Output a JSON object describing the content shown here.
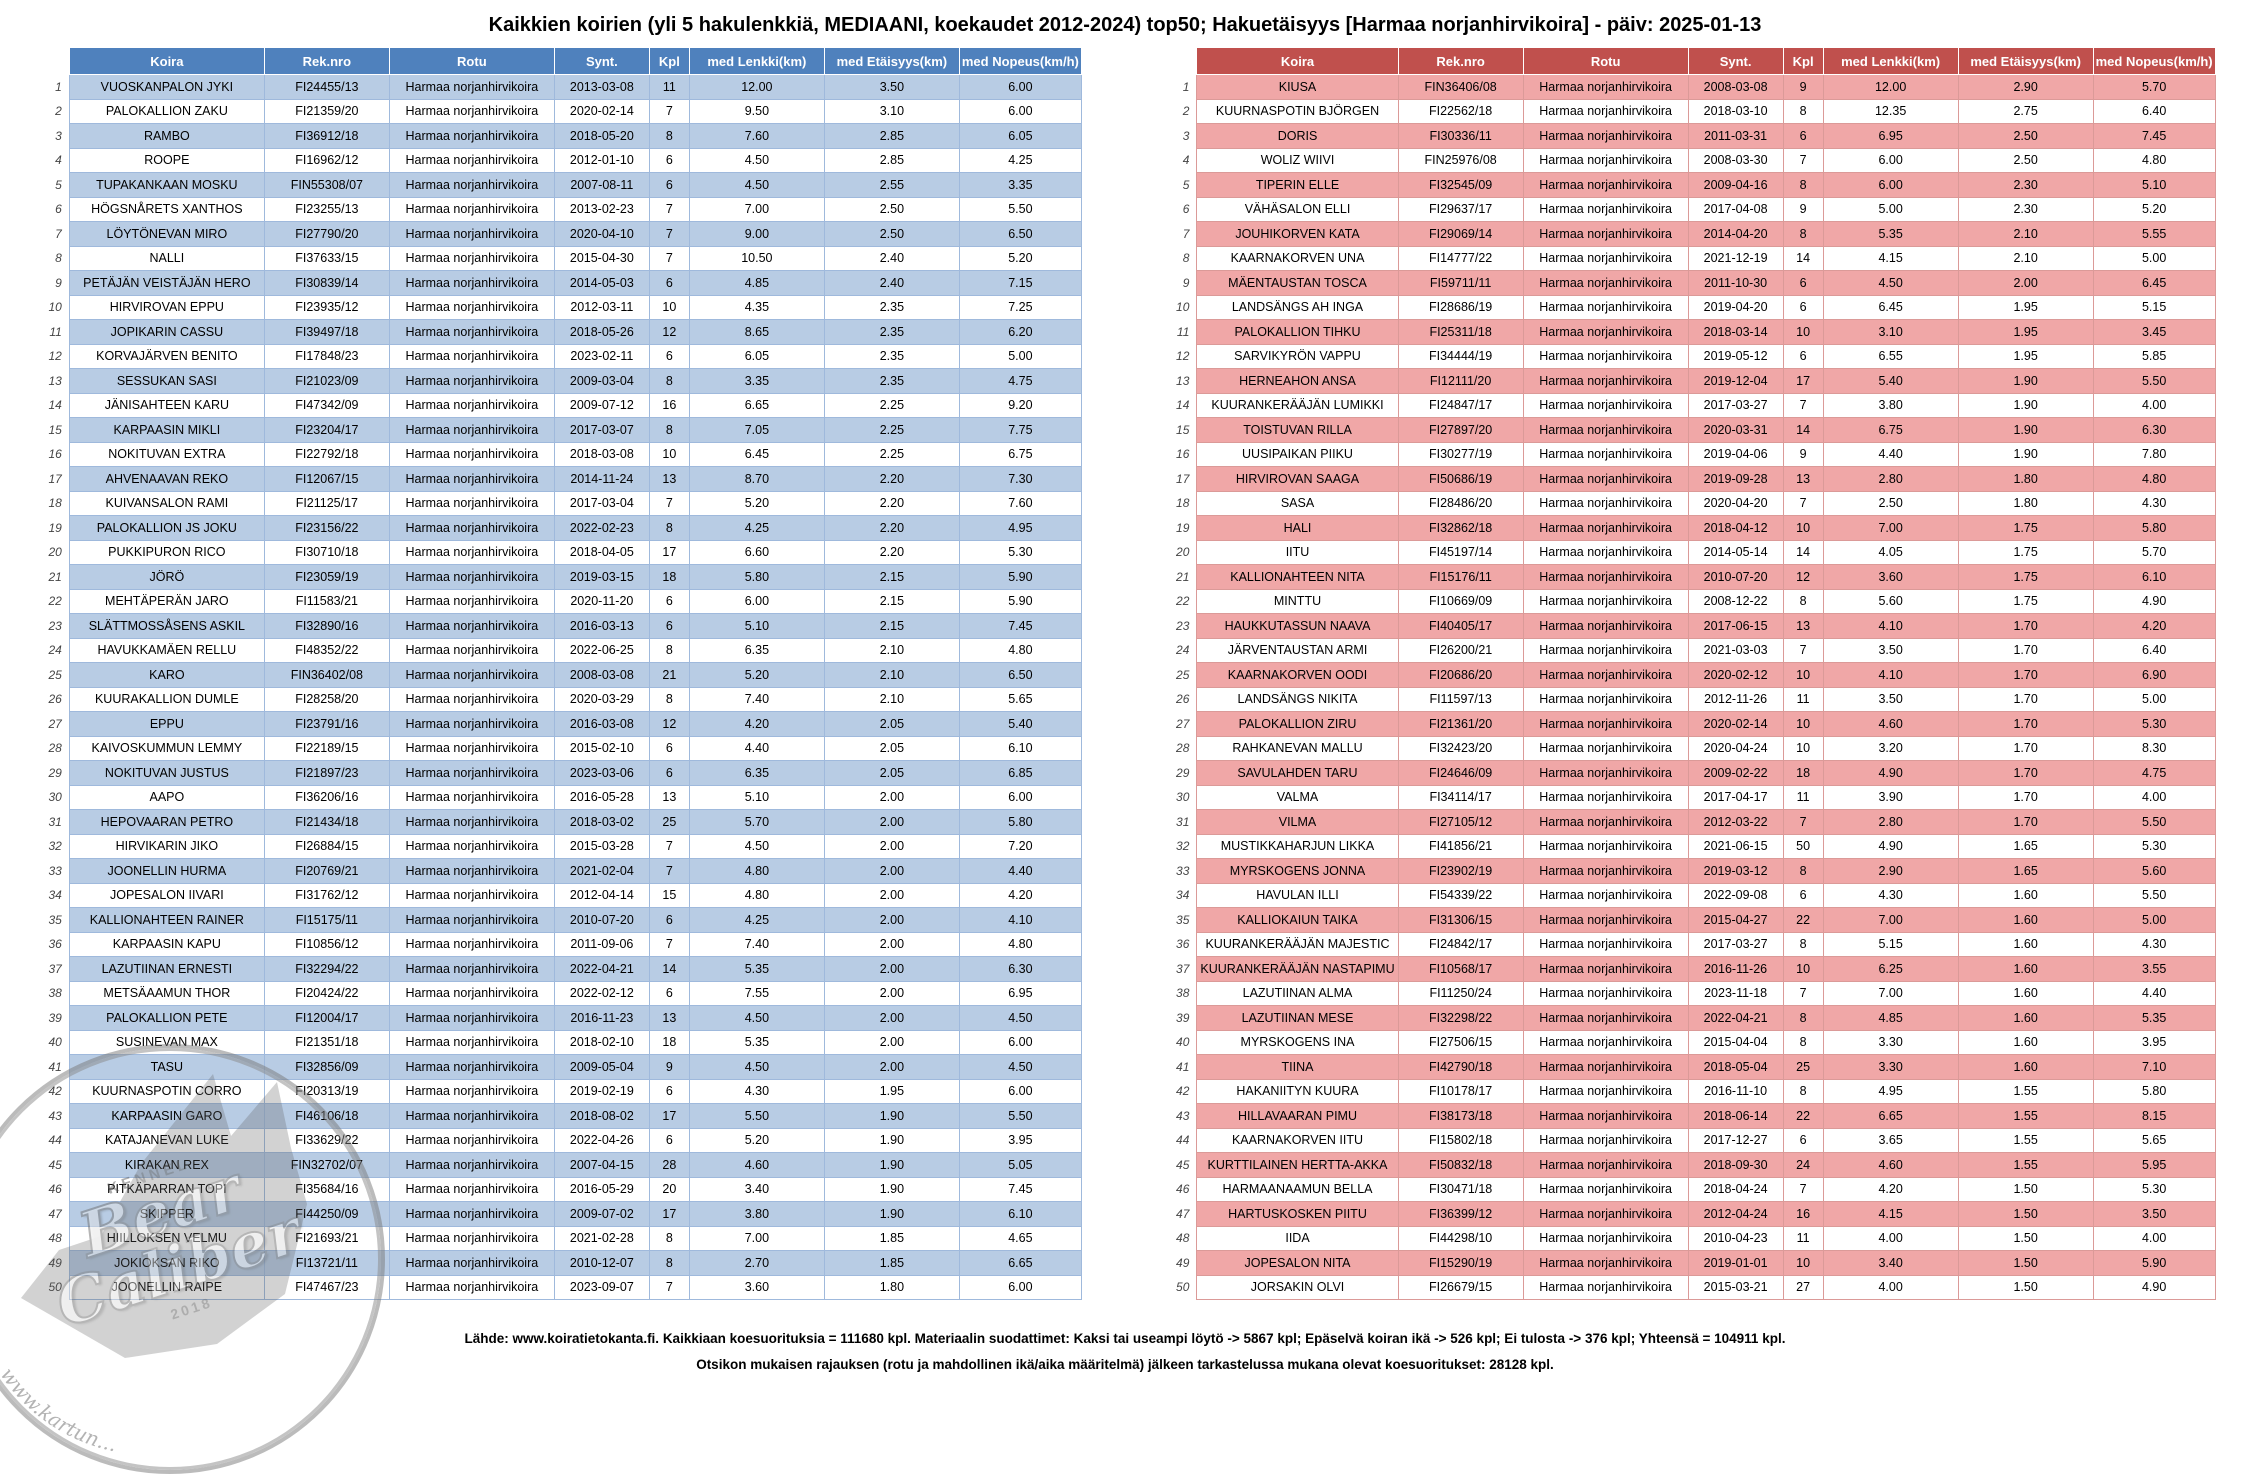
{
  "title": "Kaikkien koirien (yli 5 hakulenkkiä, MEDIAANI, koekaudet 2012-2024) top50; Hakuetäisyys [Harmaa norjanhirvikoira] - päiv: 2025-01-13",
  "columns": [
    "Koira",
    "Rek.nro",
    "Rotu",
    "Synt.",
    "Kpl",
    "med Lenkki(km)",
    "med Etäisyys(km)",
    "med Nopeus(km/h)"
  ],
  "breed": "Harmaa norjanhirvikoira",
  "theme": {
    "left_header_bg": "#4F81BD",
    "left_stripe_bg": "#B8CCE4",
    "right_header_bg": "#C0504D",
    "right_stripe_bg": "#F0A7A7"
  },
  "left_table": {
    "rows": [
      [
        1,
        "VUOSKANPALON JYKI",
        "FI24455/13",
        "2013-03-08",
        "11",
        "12.00",
        "3.50",
        "6.00"
      ],
      [
        2,
        "PALOKALLION ZAKU",
        "FI21359/20",
        "2020-02-14",
        "7",
        "9.50",
        "3.10",
        "6.00"
      ],
      [
        3,
        "RAMBO",
        "FI36912/18",
        "2018-05-20",
        "8",
        "7.60",
        "2.85",
        "6.05"
      ],
      [
        4,
        "ROOPE",
        "FI16962/12",
        "2012-01-10",
        "6",
        "4.50",
        "2.85",
        "4.25"
      ],
      [
        5,
        "TUPAKANKAAN MOSKU",
        "FIN55308/07",
        "2007-08-11",
        "6",
        "4.50",
        "2.55",
        "3.35"
      ],
      [
        6,
        "HÖGSNÅRETS XANTHOS",
        "FI23255/13",
        "2013-02-23",
        "7",
        "7.00",
        "2.50",
        "5.50"
      ],
      [
        7,
        "LÖYTÖNEVAN MIRO",
        "FI27790/20",
        "2020-04-10",
        "7",
        "9.00",
        "2.50",
        "6.50"
      ],
      [
        8,
        "NALLI",
        "FI37633/15",
        "2015-04-30",
        "7",
        "10.50",
        "2.40",
        "5.20"
      ],
      [
        9,
        "PETÄJÄN VEISTÄJÄN HERO",
        "FI30839/14",
        "2014-05-03",
        "6",
        "4.85",
        "2.40",
        "7.15"
      ],
      [
        10,
        "HIRVIROVAN EPPU",
        "FI23935/12",
        "2012-03-11",
        "10",
        "4.35",
        "2.35",
        "7.25"
      ],
      [
        11,
        "JOPIKARIN CASSU",
        "FI39497/18",
        "2018-05-26",
        "12",
        "8.65",
        "2.35",
        "6.20"
      ],
      [
        12,
        "KORVAJÄRVEN BENITO",
        "FI17848/23",
        "2023-02-11",
        "6",
        "6.05",
        "2.35",
        "5.00"
      ],
      [
        13,
        "SESSUKAN SASI",
        "FI21023/09",
        "2009-03-04",
        "8",
        "3.35",
        "2.35",
        "4.75"
      ],
      [
        14,
        "JÄNISAHTEEN KARU",
        "FI47342/09",
        "2009-07-12",
        "16",
        "6.65",
        "2.25",
        "9.20"
      ],
      [
        15,
        "KARPAASIN MIKLI",
        "FI23204/17",
        "2017-03-07",
        "8",
        "7.05",
        "2.25",
        "7.75"
      ],
      [
        16,
        "NOKITUVAN EXTRA",
        "FI22792/18",
        "2018-03-08",
        "10",
        "6.45",
        "2.25",
        "6.75"
      ],
      [
        17,
        "AHVENAAVAN REKO",
        "FI12067/15",
        "2014-11-24",
        "13",
        "8.70",
        "2.20",
        "7.30"
      ],
      [
        18,
        "KUIVANSALON RAMI",
        "FI21125/17",
        "2017-03-04",
        "7",
        "5.20",
        "2.20",
        "7.60"
      ],
      [
        19,
        "PALOKALLION JS JOKU",
        "FI23156/22",
        "2022-02-23",
        "8",
        "4.25",
        "2.20",
        "4.95"
      ],
      [
        20,
        "PUKKIPURON RICO",
        "FI30710/18",
        "2018-04-05",
        "17",
        "6.60",
        "2.20",
        "5.30"
      ],
      [
        21,
        "JÖRÖ",
        "FI23059/19",
        "2019-03-15",
        "18",
        "5.80",
        "2.15",
        "5.90"
      ],
      [
        22,
        "MEHTÄPERÄN JARO",
        "FI11583/21",
        "2020-11-20",
        "6",
        "6.00",
        "2.15",
        "5.90"
      ],
      [
        23,
        "SLÄTTMOSSÅSENS ASKIL",
        "FI32890/16",
        "2016-03-13",
        "6",
        "5.10",
        "2.15",
        "7.45"
      ],
      [
        24,
        "HAVUKKAMÄEN RELLU",
        "FI48352/22",
        "2022-06-25",
        "8",
        "6.35",
        "2.10",
        "4.80"
      ],
      [
        25,
        "KARO",
        "FIN36402/08",
        "2008-03-08",
        "21",
        "5.20",
        "2.10",
        "6.50"
      ],
      [
        26,
        "KUURAKALLION DUMLE",
        "FI28258/20",
        "2020-03-29",
        "8",
        "7.40",
        "2.10",
        "5.65"
      ],
      [
        27,
        "EPPU",
        "FI23791/16",
        "2016-03-08",
        "12",
        "4.20",
        "2.05",
        "5.40"
      ],
      [
        28,
        "KAIVOSKUMMUN LEMMY",
        "FI22189/15",
        "2015-02-10",
        "6",
        "4.40",
        "2.05",
        "6.10"
      ],
      [
        29,
        "NOKITUVAN JUSTUS",
        "FI21897/23",
        "2023-03-06",
        "6",
        "6.35",
        "2.05",
        "6.85"
      ],
      [
        30,
        "AAPO",
        "FI36206/16",
        "2016-05-28",
        "13",
        "5.10",
        "2.00",
        "6.00"
      ],
      [
        31,
        "HEPOVAARAN PETRO",
        "FI21434/18",
        "2018-03-02",
        "25",
        "5.70",
        "2.00",
        "5.80"
      ],
      [
        32,
        "HIRVIKARIN JIKO",
        "FI26884/15",
        "2015-03-28",
        "7",
        "4.50",
        "2.00",
        "7.20"
      ],
      [
        33,
        "JOONELLIN HURMA",
        "FI20769/21",
        "2021-02-04",
        "7",
        "4.80",
        "2.00",
        "4.40"
      ],
      [
        34,
        "JOPESALON IIVARI",
        "FI31762/12",
        "2012-04-14",
        "15",
        "4.80",
        "2.00",
        "4.20"
      ],
      [
        35,
        "KALLIONAHTEEN RAINER",
        "FI15175/11",
        "2010-07-20",
        "6",
        "4.25",
        "2.00",
        "4.10"
      ],
      [
        36,
        "KARPAASIN KAPU",
        "FI10856/12",
        "2011-09-06",
        "7",
        "7.40",
        "2.00",
        "4.80"
      ],
      [
        37,
        "LAZUTIINAN ERNESTI",
        "FI32294/22",
        "2022-04-21",
        "14",
        "5.35",
        "2.00",
        "6.30"
      ],
      [
        38,
        "METSÄAAMUN THOR",
        "FI20424/22",
        "2022-02-12",
        "6",
        "7.55",
        "2.00",
        "6.95"
      ],
      [
        39,
        "PALOKALLION PETE",
        "FI12004/17",
        "2016-11-23",
        "13",
        "4.50",
        "2.00",
        "4.50"
      ],
      [
        40,
        "SUSINEVAN MAX",
        "FI21351/18",
        "2018-02-10",
        "18",
        "5.35",
        "2.00",
        "6.00"
      ],
      [
        41,
        "TASU",
        "FI32856/09",
        "2009-05-04",
        "9",
        "4.50",
        "2.00",
        "4.50"
      ],
      [
        42,
        "KUURNASPOTIN CORRO",
        "FI20313/19",
        "2019-02-19",
        "6",
        "4.30",
        "1.95",
        "6.00"
      ],
      [
        43,
        "KARPAASIN GARO",
        "FI46106/18",
        "2018-08-02",
        "17",
        "5.50",
        "1.90",
        "5.50"
      ],
      [
        44,
        "KATAJANEVAN LUKE",
        "FI33629/22",
        "2022-04-26",
        "6",
        "5.20",
        "1.90",
        "3.95"
      ],
      [
        45,
        "KIRAKAN REX",
        "FIN32702/07",
        "2007-04-15",
        "28",
        "4.60",
        "1.90",
        "5.05"
      ],
      [
        46,
        "PITKÄPARRAN TOPI",
        "FI35684/16",
        "2016-05-29",
        "20",
        "3.40",
        "1.90",
        "7.45"
      ],
      [
        47,
        "SKIPPER",
        "FI44250/09",
        "2009-07-02",
        "17",
        "3.80",
        "1.90",
        "6.10"
      ],
      [
        48,
        "HIILLOKSEN VELMU",
        "FI21693/21",
        "2021-02-28",
        "8",
        "7.00",
        "1.85",
        "4.65"
      ],
      [
        49,
        "JOKIOKSAN RIKO",
        "FI13721/11",
        "2010-12-07",
        "8",
        "2.70",
        "1.85",
        "6.65"
      ],
      [
        50,
        "JOONELLIN RAIPE",
        "FI47467/23",
        "2023-09-07",
        "7",
        "3.60",
        "1.80",
        "6.00"
      ]
    ]
  },
  "right_table": {
    "rows": [
      [
        1,
        "KIUSA",
        "FIN36406/08",
        "2008-03-08",
        "9",
        "12.00",
        "2.90",
        "5.70"
      ],
      [
        2,
        "KUURNASPOTIN BJÖRGEN",
        "FI22562/18",
        "2018-03-10",
        "8",
        "12.35",
        "2.75",
        "6.40"
      ],
      [
        3,
        "DORIS",
        "FI30336/11",
        "2011-03-31",
        "6",
        "6.95",
        "2.50",
        "7.45"
      ],
      [
        4,
        "WOLIZ WIIVI",
        "FIN25976/08",
        "2008-03-30",
        "7",
        "6.00",
        "2.50",
        "4.80"
      ],
      [
        5,
        "TIPERIN ELLE",
        "FI32545/09",
        "2009-04-16",
        "8",
        "6.00",
        "2.30",
        "5.10"
      ],
      [
        6,
        "VÄHÄSALON ELLI",
        "FI29637/17",
        "2017-04-08",
        "9",
        "5.00",
        "2.30",
        "5.20"
      ],
      [
        7,
        "JOUHIKORVEN KATA",
        "FI29069/14",
        "2014-04-20",
        "8",
        "5.35",
        "2.10",
        "5.55"
      ],
      [
        8,
        "KAARNAKORVEN UNA",
        "FI14777/22",
        "2021-12-19",
        "14",
        "4.15",
        "2.10",
        "5.00"
      ],
      [
        9,
        "MÄENTAUSTAN TOSCA",
        "FI59711/11",
        "2011-10-30",
        "6",
        "4.50",
        "2.00",
        "6.45"
      ],
      [
        10,
        "LANDSÄNGS AH INGA",
        "FI28686/19",
        "2019-04-20",
        "6",
        "6.45",
        "1.95",
        "5.15"
      ],
      [
        11,
        "PALOKALLION TIHKU",
        "FI25311/18",
        "2018-03-14",
        "10",
        "3.10",
        "1.95",
        "3.45"
      ],
      [
        12,
        "SARVIKYRÖN VAPPU",
        "FI34444/19",
        "2019-05-12",
        "6",
        "6.55",
        "1.95",
        "5.85"
      ],
      [
        13,
        "HERNEAHON ANSA",
        "FI12111/20",
        "2019-12-04",
        "17",
        "5.40",
        "1.90",
        "5.50"
      ],
      [
        14,
        "KUURANKERÄÄJÄN LUMIKKI",
        "FI24847/17",
        "2017-03-27",
        "7",
        "3.80",
        "1.90",
        "4.00"
      ],
      [
        15,
        "TOISTUVAN RILLA",
        "FI27897/20",
        "2020-03-31",
        "14",
        "6.75",
        "1.90",
        "6.30"
      ],
      [
        16,
        "UUSIPAIKAN PIIKU",
        "FI30277/19",
        "2019-04-06",
        "9",
        "4.40",
        "1.90",
        "7.80"
      ],
      [
        17,
        "HIRVIROVAN SAAGA",
        "FI50686/19",
        "2019-09-28",
        "13",
        "2.80",
        "1.80",
        "4.80"
      ],
      [
        18,
        "SASA",
        "FI28486/20",
        "2020-04-20",
        "7",
        "2.50",
        "1.80",
        "4.30"
      ],
      [
        19,
        "HALI",
        "FI32862/18",
        "2018-04-12",
        "10",
        "7.00",
        "1.75",
        "5.80"
      ],
      [
        20,
        "IITU",
        "FI45197/14",
        "2014-05-14",
        "14",
        "4.05",
        "1.75",
        "5.70"
      ],
      [
        21,
        "KALLIONAHTEEN NITA",
        "FI15176/11",
        "2010-07-20",
        "12",
        "3.60",
        "1.75",
        "6.10"
      ],
      [
        22,
        "MINTTU",
        "FI10669/09",
        "2008-12-22",
        "8",
        "5.60",
        "1.75",
        "4.90"
      ],
      [
        23,
        "HAUKKUTASSUN NAAVA",
        "FI40405/17",
        "2017-06-15",
        "13",
        "4.10",
        "1.70",
        "4.20"
      ],
      [
        24,
        "JÄRVENTAUSTAN ARMI",
        "FI26200/21",
        "2021-03-03",
        "7",
        "3.50",
        "1.70",
        "6.40"
      ],
      [
        25,
        "KAARNAKORVEN OODI",
        "FI20686/20",
        "2020-02-12",
        "10",
        "4.10",
        "1.70",
        "6.90"
      ],
      [
        26,
        "LANDSÄNGS NIKITA",
        "FI11597/13",
        "2012-11-26",
        "11",
        "3.50",
        "1.70",
        "5.00"
      ],
      [
        27,
        "PALOKALLION ZIRU",
        "FI21361/20",
        "2020-02-14",
        "10",
        "4.60",
        "1.70",
        "5.30"
      ],
      [
        28,
        "RAHKANEVAN MALLU",
        "FI32423/20",
        "2020-04-24",
        "10",
        "3.20",
        "1.70",
        "8.30"
      ],
      [
        29,
        "SAVULAHDEN TARU",
        "FI24646/09",
        "2009-02-22",
        "18",
        "4.90",
        "1.70",
        "4.75"
      ],
      [
        30,
        "VALMA",
        "FI34114/17",
        "2017-04-17",
        "11",
        "3.90",
        "1.70",
        "4.00"
      ],
      [
        31,
        "VILMA",
        "FI27105/12",
        "2012-03-22",
        "7",
        "2.80",
        "1.70",
        "5.50"
      ],
      [
        32,
        "MUSTIKKAHARJUN LIKKA",
        "FI41856/21",
        "2021-06-15",
        "50",
        "4.90",
        "1.65",
        "5.30"
      ],
      [
        33,
        "MYRSKOGENS JONNA",
        "FI23902/19",
        "2019-03-12",
        "8",
        "2.90",
        "1.65",
        "5.60"
      ],
      [
        34,
        "HAVULAN ILLI",
        "FI54339/22",
        "2022-09-08",
        "6",
        "4.30",
        "1.60",
        "5.50"
      ],
      [
        35,
        "KALLIOKAIUN TAIKA",
        "FI31306/15",
        "2015-04-27",
        "22",
        "7.00",
        "1.60",
        "5.00"
      ],
      [
        36,
        "KUURANKERÄÄJÄN MAJESTIC",
        "FI24842/17",
        "2017-03-27",
        "8",
        "5.15",
        "1.60",
        "4.30"
      ],
      [
        37,
        "KUURANKERÄÄJÄN NASTAPIMU",
        "FI10568/17",
        "2016-11-26",
        "10",
        "6.25",
        "1.60",
        "3.55"
      ],
      [
        38,
        "LAZUTIINAN ALMA",
        "FI11250/24",
        "2023-11-18",
        "7",
        "7.00",
        "1.60",
        "4.40"
      ],
      [
        39,
        "LAZUTIINAN MESE",
        "FI32298/22",
        "2022-04-21",
        "8",
        "4.85",
        "1.60",
        "5.35"
      ],
      [
        40,
        "MYRSKOGENS INA",
        "FI27506/15",
        "2015-04-04",
        "8",
        "3.30",
        "1.60",
        "3.95"
      ],
      [
        41,
        "TIINA",
        "FI42790/18",
        "2018-05-04",
        "25",
        "3.30",
        "1.60",
        "7.10"
      ],
      [
        42,
        "HAKANIITYN KUURA",
        "FI10178/17",
        "2016-11-10",
        "8",
        "4.95",
        "1.55",
        "5.80"
      ],
      [
        43,
        "HILLAVAARAN PIMU",
        "FI38173/18",
        "2018-06-14",
        "22",
        "6.65",
        "1.55",
        "8.15"
      ],
      [
        44,
        "KAARNAKORVEN IITU",
        "FI15802/18",
        "2017-12-27",
        "6",
        "3.65",
        "1.55",
        "5.65"
      ],
      [
        45,
        "KURTTILAINEN HERTTA-AKKA",
        "FI50832/18",
        "2018-09-30",
        "24",
        "4.60",
        "1.55",
        "5.95"
      ],
      [
        46,
        "HARMAANAAMUN BELLA",
        "FI30471/18",
        "2018-04-24",
        "7",
        "4.20",
        "1.50",
        "5.30"
      ],
      [
        47,
        "HARTUSKOSKEN PIITU",
        "FI36399/12",
        "2012-04-24",
        "16",
        "4.15",
        "1.50",
        "3.50"
      ],
      [
        48,
        "IIDA",
        "FI44298/10",
        "2010-04-23",
        "11",
        "4.00",
        "1.50",
        "4.00"
      ],
      [
        49,
        "JOPESALON NITA",
        "FI15290/19",
        "2019-01-01",
        "10",
        "3.40",
        "1.50",
        "5.90"
      ],
      [
        50,
        "JORSAKIN OLVI",
        "FI26679/15",
        "2015-03-21",
        "27",
        "4.00",
        "1.50",
        "4.90"
      ]
    ]
  },
  "footer": {
    "line1": "Lähde: www.koiratietokanta.fi. Kaikkiaan koesuorituksia = 111680 kpl. Materiaalin suodattimet: Kaksi tai useampi löytö -> 5867 kpl; Epäselvä koiran ikä -> 526 kpl; Ei tulosta -> 376 kpl; Yhteensä = 104911 kpl.",
    "line2": "Otsikon mukaisen rajauksen (rotu ja mahdollinen ikä/aika määritelmä) jälkeen tarkastelussa mukana olevat koesuoritukset: 28128 kpl."
  },
  "watermark": {
    "kennel_label": "KENNEL",
    "name_line1": "Bear",
    "name_line2": "Caliber",
    "year": "2018",
    "arc_text": "www.kartun..."
  }
}
